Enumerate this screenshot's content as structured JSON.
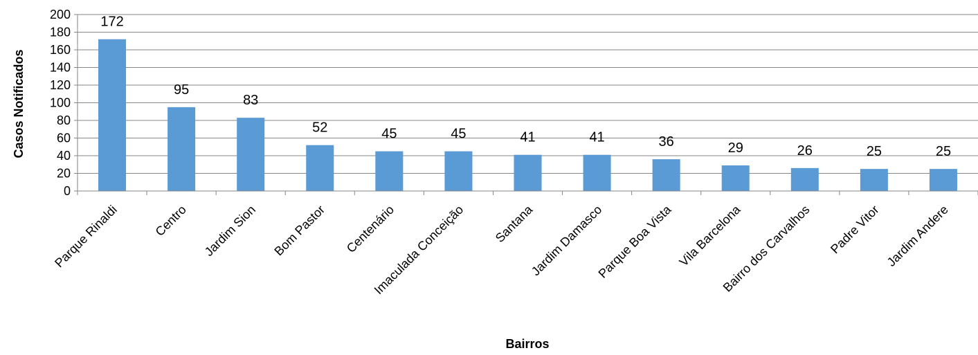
{
  "chart_data": {
    "type": "bar",
    "title": "",
    "xlabel": "Bairros",
    "ylabel": "Casos Notificados",
    "ylim": [
      0,
      200
    ],
    "yticks": [
      0,
      20,
      40,
      60,
      80,
      100,
      120,
      140,
      160,
      180,
      200
    ],
    "grid": true,
    "legend": "none",
    "bar_color": "#5b9bd5",
    "grid_color": "#868686",
    "categories": [
      "Parque Rinaldi",
      "Centro",
      "Jardim Sion",
      "Bom Pastor",
      "Centenário",
      "Imaculada Conceição",
      "Santana",
      "Jardim Damasco",
      "Parque Boa Vista",
      "Vila Barcelona",
      "Bairro dos Carvalhos",
      "Padre Vitor",
      "Jardim Andere"
    ],
    "values": [
      172,
      95,
      83,
      52,
      45,
      45,
      41,
      41,
      36,
      29,
      26,
      25,
      25
    ],
    "data_labels": [
      "172",
      "95",
      "83",
      "52",
      "45",
      "45",
      "41",
      "41",
      "36",
      "29",
      "26",
      "25",
      "25"
    ]
  }
}
